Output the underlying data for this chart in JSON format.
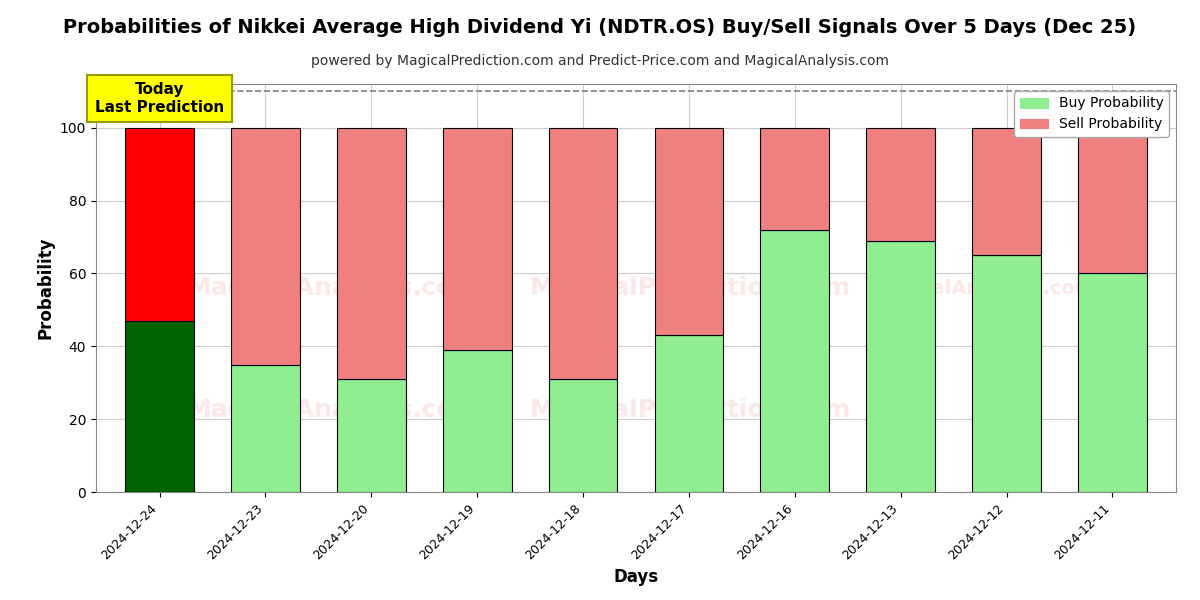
{
  "title": "Probabilities of Nikkei Average High Dividend Yi (NDTR.OS) Buy/Sell Signals Over 5 Days (Dec 25)",
  "subtitle": "powered by MagicalPrediction.com and Predict-Price.com and MagicalAnalysis.com",
  "xlabel": "Days",
  "ylabel": "Probability",
  "dates": [
    "2024-12-24",
    "2024-12-23",
    "2024-12-20",
    "2024-12-19",
    "2024-12-18",
    "2024-12-17",
    "2024-12-16",
    "2024-12-13",
    "2024-12-12",
    "2024-12-11"
  ],
  "buy_values": [
    47,
    35,
    31,
    39,
    31,
    43,
    72,
    69,
    65,
    60
  ],
  "sell_values": [
    53,
    65,
    69,
    61,
    69,
    57,
    28,
    31,
    35,
    40
  ],
  "buy_colors": [
    "#006400",
    "#90EE90",
    "#90EE90",
    "#90EE90",
    "#90EE90",
    "#90EE90",
    "#90EE90",
    "#90EE90",
    "#90EE90",
    "#90EE90"
  ],
  "sell_colors": [
    "#FF0000",
    "#F08080",
    "#F08080",
    "#F08080",
    "#F08080",
    "#F08080",
    "#F08080",
    "#F08080",
    "#F08080",
    "#F08080"
  ],
  "today_box_color": "#FFFF00",
  "today_label": "Today\nLast Prediction",
  "ylim": [
    0,
    112
  ],
  "yticks": [
    0,
    20,
    40,
    60,
    80,
    100
  ],
  "dashed_line_y": 110,
  "legend_buy_color": "#90EE90",
  "legend_sell_color": "#F08080",
  "legend_buy_label": "Buy Probability",
  "legend_sell_label": "Sell Probability",
  "background_color": "#ffffff",
  "grid_color": "#cccccc",
  "bar_edge_color": "#000000",
  "title_fontsize": 14,
  "subtitle_fontsize": 10,
  "watermark1_text": "MagicalAnalysis.com",
  "watermark2_text": "MagicalPrediction.com",
  "watermark3_text": "MagicalAnalysis.com",
  "watermark4_text": "MagicalPrediction.com"
}
